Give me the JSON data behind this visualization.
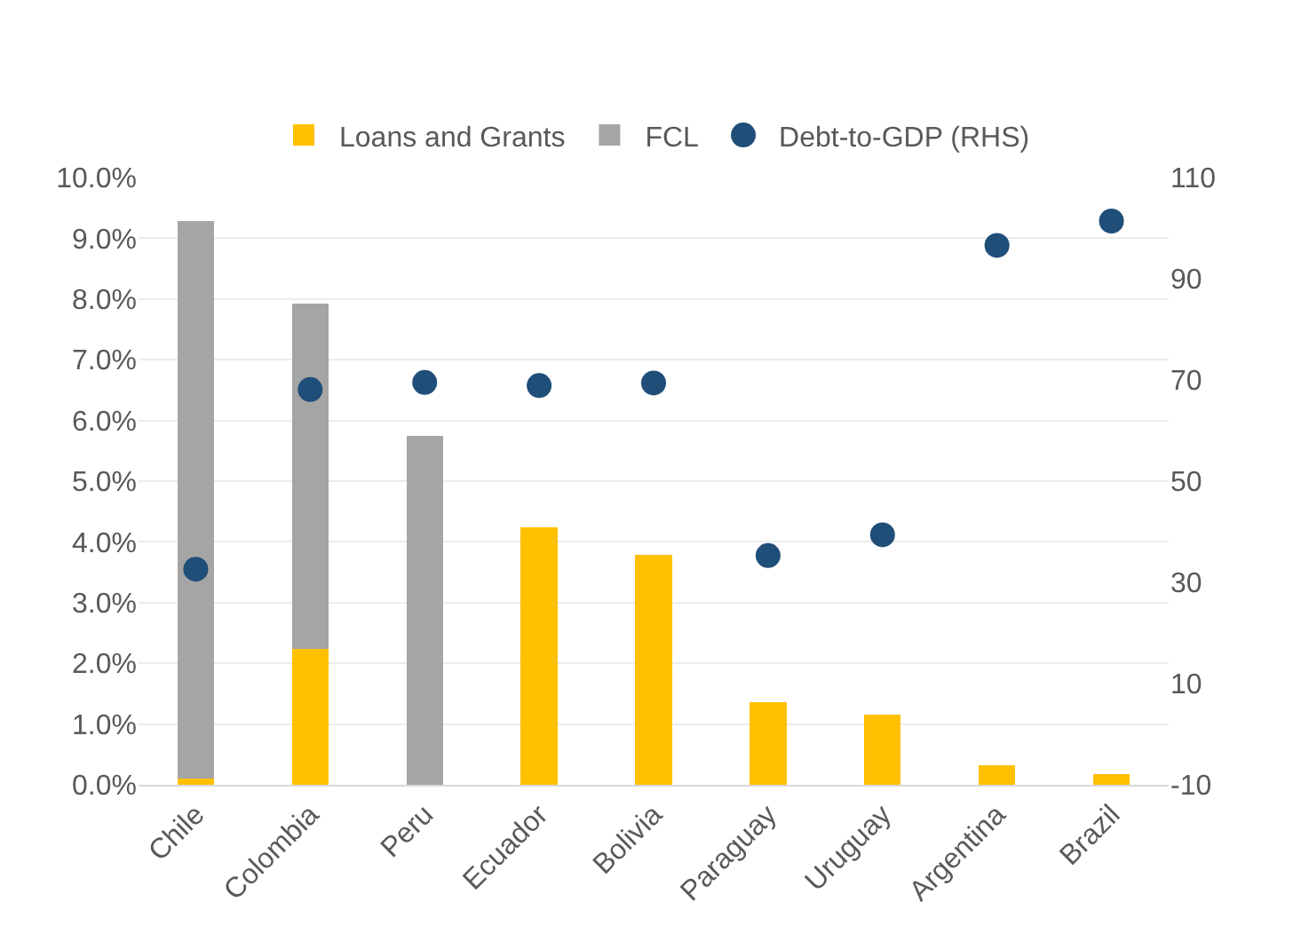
{
  "chart_data": {
    "type": "bar",
    "stacked": true,
    "categories": [
      "Chile",
      "Colombia",
      "Peru",
      "Ecuador",
      "Bolivia",
      "Paraguay",
      "Uruguay",
      "Argentina",
      "Brazil"
    ],
    "series": [
      {
        "name": "Loans and Grants",
        "color": "#ffc000",
        "values": [
          0.1,
          2.23,
          0,
          4.24,
          3.79,
          1.36,
          1.16,
          0.32,
          0.17
        ]
      },
      {
        "name": "FCL",
        "color": "#a5a5a5",
        "values": [
          9.19,
          5.69,
          5.74,
          0,
          0,
          0,
          0,
          0,
          0
        ]
      },
      {
        "name": "Debt-to-GDP (RHS)",
        "color": "#1f4e79",
        "type": "scatter",
        "axis": "y2",
        "values": [
          32.6,
          68.1,
          69.5,
          68.9,
          69.4,
          35.3,
          39.4,
          96.6,
          101.4
        ]
      }
    ],
    "ylim": [
      0,
      10
    ],
    "yticks": [
      {
        "value": 0,
        "label": "0.0%"
      },
      {
        "value": 1,
        "label": "1.0%"
      },
      {
        "value": 2,
        "label": "2.0%"
      },
      {
        "value": 3,
        "label": "3.0%"
      },
      {
        "value": 4,
        "label": "4.0%"
      },
      {
        "value": 5,
        "label": "5.0%"
      },
      {
        "value": 6,
        "label": "6.0%"
      },
      {
        "value": 7,
        "label": "7.0%"
      },
      {
        "value": 8,
        "label": "8.0%"
      },
      {
        "value": 9,
        "label": "9.0%"
      },
      {
        "value": 10,
        "label": "10.0%"
      }
    ],
    "y2lim": [
      -10,
      110
    ],
    "y2ticks": [
      -10,
      10,
      30,
      50,
      70,
      90,
      110
    ],
    "grid": "y",
    "legend": "top",
    "marker": "circle"
  }
}
